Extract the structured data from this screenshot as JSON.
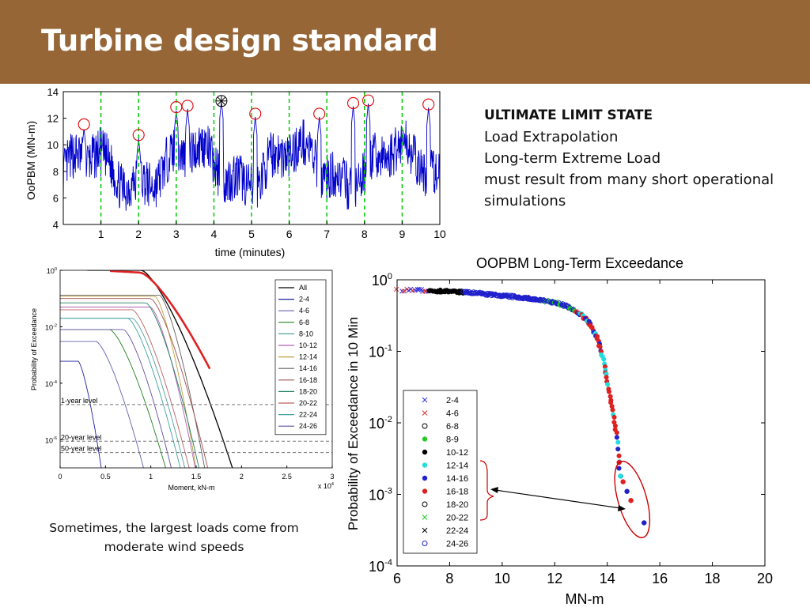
{
  "slide": {
    "title": "Turbine design standard",
    "header_color": "#966637",
    "text_block": {
      "heading": "ULTIMATE LIMIT STATE",
      "lines": [
        "Load Extrapolation",
        "Long-term Extreme Load",
        "must result from many short operational simulations"
      ]
    },
    "caption": "Sometimes, the largest loads come from moderate wind speeds"
  },
  "chart_data": [
    {
      "type": "line",
      "title": "",
      "xlabel": "time (minutes)",
      "ylabel": "OoPBM (MN-m)",
      "xlim": [
        0,
        10
      ],
      "ylim": [
        4,
        14
      ],
      "xticks": [
        "1",
        "2",
        "3",
        "4",
        "5",
        "6",
        "7",
        "8",
        "9",
        "10"
      ],
      "yticks": [
        "4",
        "6",
        "8",
        "10",
        "12",
        "14"
      ],
      "series_color": "#0000cc",
      "boundary_color": "#00cc00",
      "boundaries_x": [
        1,
        2,
        3,
        4,
        5,
        6,
        7,
        8,
        9
      ],
      "peaks": [
        {
          "x": 0.55,
          "y": 11.3
        },
        {
          "x": 2.0,
          "y": 10.5
        },
        {
          "x": 3.0,
          "y": 12.6
        },
        {
          "x": 3.3,
          "y": 12.7
        },
        {
          "x": 4.2,
          "y": 13.3,
          "marker": "asterisk"
        },
        {
          "x": 5.1,
          "y": 12.1
        },
        {
          "x": 6.8,
          "y": 12.1
        },
        {
          "x": 7.7,
          "y": 12.9
        },
        {
          "x": 8.1,
          "y": 13.1
        },
        {
          "x": 9.7,
          "y": 12.8
        }
      ]
    },
    {
      "type": "line",
      "title": "",
      "xlabel": "Moment, kN-m",
      "ylabel": "Probability of Exceedance",
      "xlim": [
        0,
        30000
      ],
      "yscale": "log",
      "ylim": [
        1e-07,
        1
      ],
      "xticks": [
        "0",
        "0.5",
        "1",
        "1.5",
        "2",
        "2.5",
        "3"
      ],
      "x_multiplier": "x 10",
      "x_multiplier_exp": "4",
      "ytick_labels": [
        {
          "base": "10",
          "exp": "0",
          "value": 1
        },
        {
          "base": "10",
          "exp": "-2",
          "value": 0.01
        },
        {
          "base": "10",
          "exp": "-4",
          "value": 0.0001
        },
        {
          "base": "10",
          "exp": "-6",
          "value": 1e-06
        }
      ],
      "levels": [
        {
          "label": "1-year level",
          "p": 1.75e-05
        },
        {
          "label": "20-year level",
          "p": 8.8e-07
        },
        {
          "label": "50-year level",
          "p": 3.5e-07
        }
      ],
      "series": [
        {
          "name": "All",
          "color": "#000000",
          "p0": 1.0,
          "x_knee": 9000,
          "x_end": 20000
        },
        {
          "name": "2-4",
          "color": "#2020a0",
          "p0": 0.0006,
          "x_knee": 2000,
          "x_end": 5000
        },
        {
          "name": "4-6",
          "color": "#6060b0",
          "p0": 0.003,
          "x_knee": 4000,
          "x_end": 10000
        },
        {
          "name": "6-8",
          "color": "#208020",
          "p0": 0.008,
          "x_knee": 5500,
          "x_end": 12500
        },
        {
          "name": "8-10",
          "color": "#50a0a0",
          "p0": 0.02,
          "x_knee": 8000,
          "x_end": 14500
        },
        {
          "name": "10-12",
          "color": "#b060b0",
          "p0": 0.05,
          "x_knee": 10000,
          "x_end": 15500
        },
        {
          "name": "12-14",
          "color": "#c0a040",
          "p0": 0.12,
          "x_knee": 10500,
          "x_end": 15500
        },
        {
          "name": "14-16",
          "color": "#606060",
          "p0": 0.13,
          "x_knee": 11000,
          "x_end": 16500
        },
        {
          "name": "16-18",
          "color": "#a05050",
          "p0": 0.1,
          "x_knee": 10000,
          "x_end": 17000
        },
        {
          "name": "18-20",
          "color": "#208060",
          "p0": 0.07,
          "x_knee": 9500,
          "x_end": 16000
        },
        {
          "name": "20-22",
          "color": "#c06060",
          "p0": 0.04,
          "x_knee": 8000,
          "x_end": 15000
        },
        {
          "name": "22-24",
          "color": "#40a0a0",
          "p0": 0.02,
          "x_knee": 7500,
          "x_end": 14000
        },
        {
          "name": "24-26",
          "color": "#6050a0",
          "p0": 0.008,
          "x_knee": 7000,
          "x_end": 13000
        }
      ],
      "highlight_color": "#dd2222",
      "legend_position": "right"
    },
    {
      "type": "scatter",
      "title": "OOPBM Long-Term Exceedance",
      "xlabel": "MN-m",
      "ylabel": "Probability of Exceedance in 10 Min",
      "xlim": [
        6,
        20
      ],
      "yscale": "log",
      "ylim": [
        0.0001,
        1
      ],
      "xticks": [
        "6",
        "8",
        "10",
        "12",
        "14",
        "16",
        "18",
        "20"
      ],
      "ytick_labels": [
        {
          "base": "10",
          "exp": "0",
          "value": 1
        },
        {
          "base": "10",
          "exp": "-1",
          "value": 0.1
        },
        {
          "base": "10",
          "exp": "-2",
          "value": 0.01
        },
        {
          "base": "10",
          "exp": "-3",
          "value": 0.001
        },
        {
          "base": "10",
          "exp": "-4",
          "value": 0.0001
        }
      ],
      "legend_position": "bottom-left",
      "legend": [
        {
          "name": "2-4",
          "marker": "x",
          "color": "#3030dd"
        },
        {
          "name": "4-6",
          "marker": "x",
          "color": "#dd3030"
        },
        {
          "name": "6-8",
          "marker": "o",
          "color": "#000000"
        },
        {
          "name": "8-9",
          "marker": "star",
          "color": "#22cc22"
        },
        {
          "name": "10-12",
          "marker": "star",
          "color": "#000000"
        },
        {
          "name": "12-14",
          "marker": "star",
          "color": "#22dddd"
        },
        {
          "name": "14-16",
          "marker": "star",
          "color": "#2020cc"
        },
        {
          "name": "16-18",
          "marker": "star",
          "color": "#dd2020"
        },
        {
          "name": "18-20",
          "marker": "o",
          "color": "#000000"
        },
        {
          "name": "20-22",
          "marker": "x",
          "color": "#22cc22"
        },
        {
          "name": "22-24",
          "marker": "x",
          "color": "#000000"
        },
        {
          "name": "24-26",
          "marker": "o",
          "color": "#2020cc"
        }
      ],
      "curve": [
        {
          "x": 6.0,
          "p": 0.72
        },
        {
          "x": 7.0,
          "p": 0.71
        },
        {
          "x": 8.0,
          "p": 0.69
        },
        {
          "x": 9.0,
          "p": 0.65
        },
        {
          "x": 10.0,
          "p": 0.6
        },
        {
          "x": 11.0,
          "p": 0.55
        },
        {
          "x": 12.0,
          "p": 0.48
        },
        {
          "x": 12.5,
          "p": 0.42
        },
        {
          "x": 13.0,
          "p": 0.33
        },
        {
          "x": 13.3,
          "p": 0.25
        },
        {
          "x": 13.6,
          "p": 0.16
        },
        {
          "x": 13.8,
          "p": 0.09
        },
        {
          "x": 14.0,
          "p": 0.04
        },
        {
          "x": 14.2,
          "p": 0.015
        },
        {
          "x": 14.35,
          "p": 0.007
        },
        {
          "x": 14.45,
          "p": 0.003
        },
        {
          "x": 14.5,
          "p": 0.0018
        },
        {
          "x": 14.6,
          "p": 0.0014
        },
        {
          "x": 14.8,
          "p": 0.001
        },
        {
          "x": 15.0,
          "p": 0.0007
        },
        {
          "x": 15.4,
          "p": 0.0004
        }
      ],
      "annotation_color": "#cc0000"
    }
  ]
}
